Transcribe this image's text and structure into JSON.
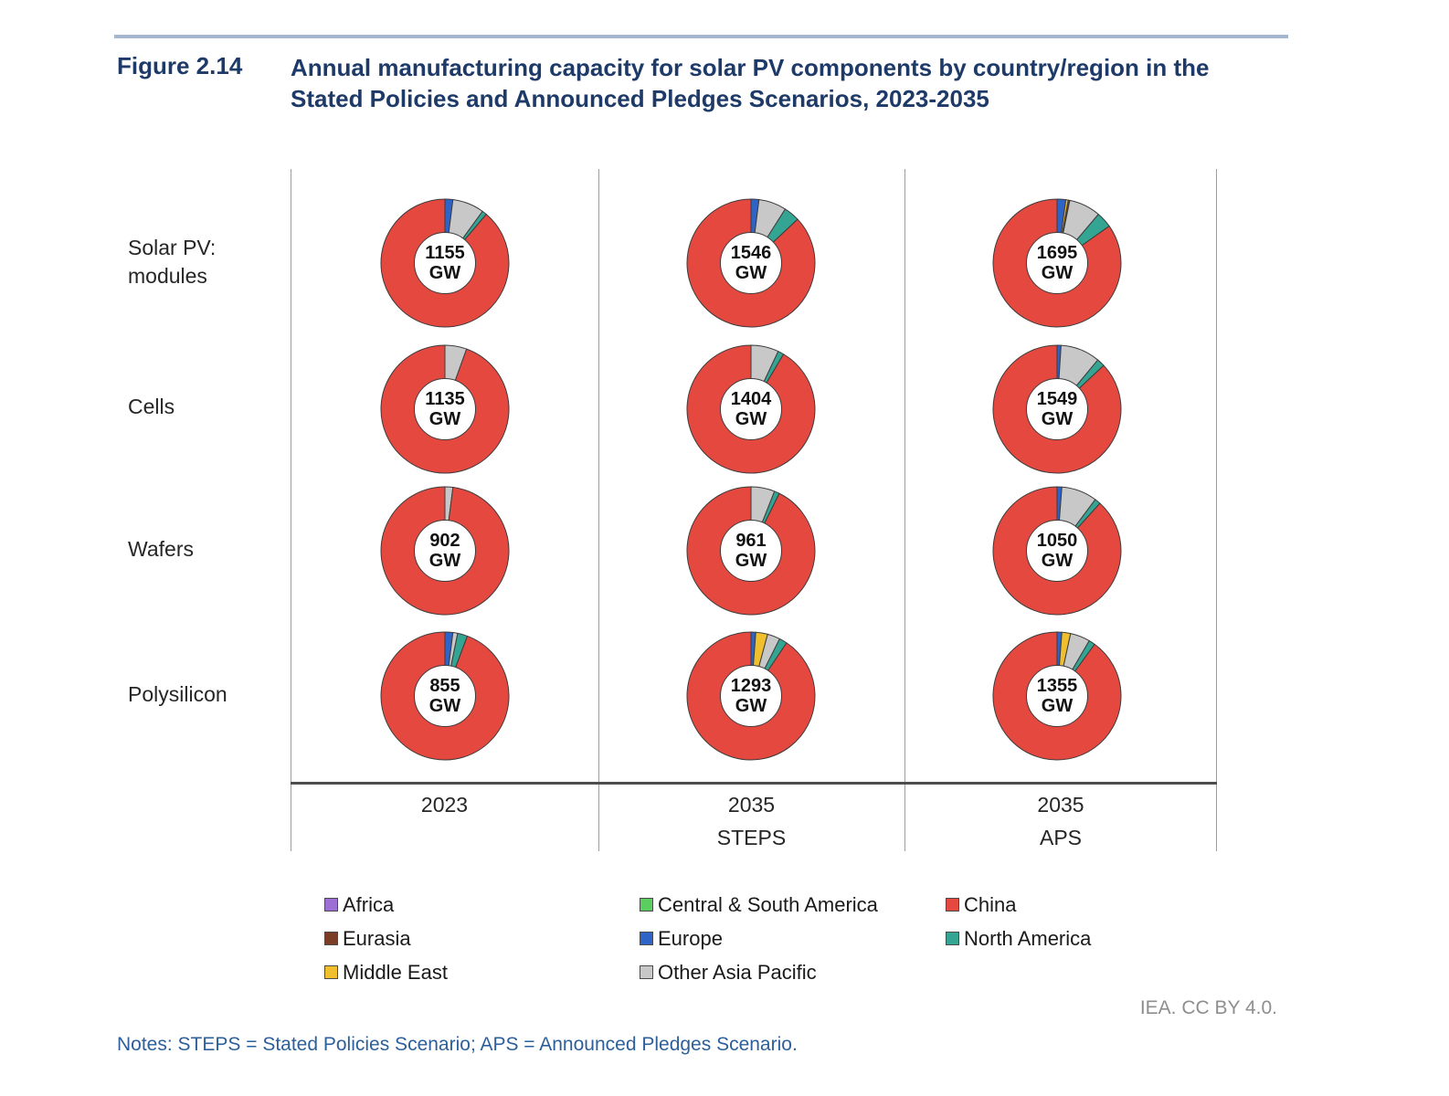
{
  "header": {
    "figure_label": "Figure 2.14",
    "title": "Annual manufacturing capacity for solar PV components by country/region in the Stated Policies and Announced Pledges Scenarios, 2023-2035"
  },
  "chart_data": {
    "type": "pie",
    "variant": "donut-grid",
    "unit": "GW",
    "title": "Annual manufacturing capacity for solar PV components by country/region in the Stated Policies and Announced Pledges Scenarios, 2023-2035",
    "legend_position": "bottom",
    "columns": [
      {
        "year": "2023",
        "scenario": ""
      },
      {
        "year": "2035",
        "scenario": "STEPS"
      },
      {
        "year": "2035",
        "scenario": "APS"
      }
    ],
    "rows": [
      {
        "label": "Solar PV: modules",
        "donuts": [
          {
            "total": "1155",
            "slices": [
              {
                "region": "Europe",
                "pct": 2.0
              },
              {
                "region": "Other Asia Pacific",
                "pct": 8.0
              },
              {
                "region": "North America",
                "pct": 1.2
              },
              {
                "region": "China",
                "pct": 88.8
              }
            ]
          },
          {
            "total": "1546",
            "slices": [
              {
                "region": "Europe",
                "pct": 2.0
              },
              {
                "region": "Other Asia Pacific",
                "pct": 7.0
              },
              {
                "region": "North America",
                "pct": 4.0
              },
              {
                "region": "China",
                "pct": 87.0
              }
            ]
          },
          {
            "total": "1695",
            "slices": [
              {
                "region": "Europe",
                "pct": 2.2
              },
              {
                "region": "Middle East",
                "pct": 0.6
              },
              {
                "region": "Eurasia",
                "pct": 0.4
              },
              {
                "region": "Other Asia Pacific",
                "pct": 8.0
              },
              {
                "region": "North America",
                "pct": 4.0
              },
              {
                "region": "China",
                "pct": 84.8
              }
            ]
          }
        ]
      },
      {
        "label": "Cells",
        "donuts": [
          {
            "total": "1135",
            "slices": [
              {
                "region": "Other Asia Pacific",
                "pct": 5.5
              },
              {
                "region": "China",
                "pct": 94.5
              }
            ]
          },
          {
            "total": "1404",
            "slices": [
              {
                "region": "Other Asia Pacific",
                "pct": 7.0
              },
              {
                "region": "North America",
                "pct": 1.5
              },
              {
                "region": "China",
                "pct": 91.5
              }
            ]
          },
          {
            "total": "1549",
            "slices": [
              {
                "region": "Europe",
                "pct": 1.0
              },
              {
                "region": "Other Asia Pacific",
                "pct": 10.0
              },
              {
                "region": "North America",
                "pct": 2.0
              },
              {
                "region": "China",
                "pct": 87.0
              }
            ]
          }
        ]
      },
      {
        "label": "Wafers",
        "donuts": [
          {
            "total": "902",
            "slices": [
              {
                "region": "Other Asia Pacific",
                "pct": 2.0
              },
              {
                "region": "China",
                "pct": 98.0
              }
            ]
          },
          {
            "total": "961",
            "slices": [
              {
                "region": "Other Asia Pacific",
                "pct": 6.0
              },
              {
                "region": "North America",
                "pct": 1.3
              },
              {
                "region": "China",
                "pct": 92.7
              }
            ]
          },
          {
            "total": "1050",
            "slices": [
              {
                "region": "Europe",
                "pct": 1.2
              },
              {
                "region": "Other Asia Pacific",
                "pct": 9.0
              },
              {
                "region": "North America",
                "pct": 1.5
              },
              {
                "region": "China",
                "pct": 88.3
              }
            ]
          }
        ]
      },
      {
        "label": "Polysilicon",
        "donuts": [
          {
            "total": "855",
            "slices": [
              {
                "region": "Europe",
                "pct": 2.0
              },
              {
                "region": "Other Asia Pacific",
                "pct": 1.2
              },
              {
                "region": "North America",
                "pct": 2.5
              },
              {
                "region": "China",
                "pct": 94.3
              }
            ]
          },
          {
            "total": "1293",
            "slices": [
              {
                "region": "Europe",
                "pct": 1.2
              },
              {
                "region": "Middle East",
                "pct": 3.0
              },
              {
                "region": "Other Asia Pacific",
                "pct": 3.2
              },
              {
                "region": "North America",
                "pct": 2.0
              },
              {
                "region": "China",
                "pct": 90.6
              }
            ]
          },
          {
            "total": "1355",
            "slices": [
              {
                "region": "Europe",
                "pct": 1.2
              },
              {
                "region": "Middle East",
                "pct": 2.2
              },
              {
                "region": "Other Asia Pacific",
                "pct": 5.0
              },
              {
                "region": "North America",
                "pct": 1.6
              },
              {
                "region": "China",
                "pct": 90.0
              }
            ]
          }
        ]
      }
    ]
  },
  "legend": {
    "items": [
      {
        "label": "Africa",
        "color": "#9d6fd4"
      },
      {
        "label": "Eurasia",
        "color": "#7c3d26"
      },
      {
        "label": "Middle East",
        "color": "#efbf2d"
      },
      {
        "label": "Central & South America",
        "color": "#5bce60"
      },
      {
        "label": "Europe",
        "color": "#2e64c8"
      },
      {
        "label": "Other Asia Pacific",
        "color": "#c8c8c8"
      },
      {
        "label": "China",
        "color": "#e5483f"
      },
      {
        "label": "North America",
        "color": "#35a593"
      }
    ]
  },
  "footer": {
    "credit": "IEA. CC BY 4.0.",
    "notes": "Notes: STEPS = Stated Policies Scenario; APS = Announced Pledges Scenario."
  }
}
